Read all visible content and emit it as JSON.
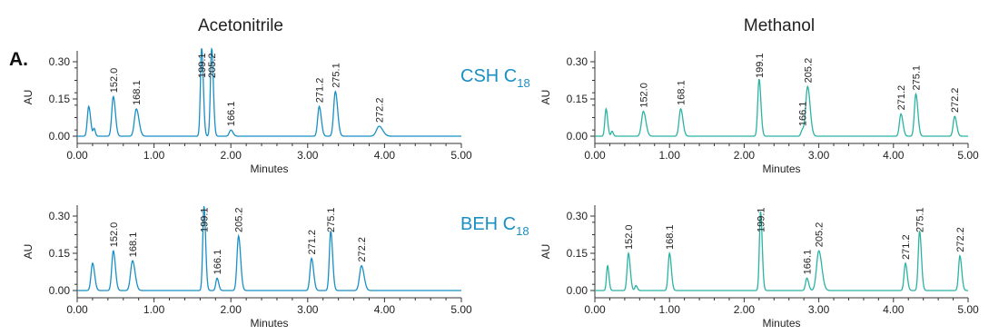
{
  "panel_label": "A.",
  "column_titles": [
    "Acetonitrile",
    "Methanol"
  ],
  "row_labels": [
    {
      "text": "CSH C",
      "sub": "18"
    },
    {
      "text": "BEH C",
      "sub": "18"
    }
  ],
  "colors": {
    "acetonitrile_trace": "#1a8fc4",
    "methanol_trace": "#2bb3a3",
    "axis": "#333333",
    "row_label": "#1a8fc4"
  },
  "chart_data": [
    {
      "type": "line",
      "title": "Acetonitrile",
      "row": "CSH C18",
      "xlabel": "Minutes",
      "ylabel": "AU",
      "xlim": [
        0,
        5
      ],
      "ylim": [
        -0.04,
        0.34
      ],
      "xticks": [
        "0.00",
        "1.00",
        "2.00",
        "3.00",
        "4.00",
        "5.00"
      ],
      "yticks": [
        "0.00",
        "0.15",
        "0.30"
      ],
      "peaks": [
        {
          "t": 0.15,
          "h": 0.12,
          "w": 0.018,
          "label": ""
        },
        {
          "t": 0.22,
          "h": 0.03,
          "w": 0.012,
          "label": ""
        },
        {
          "t": 0.47,
          "h": 0.16,
          "w": 0.02,
          "label": "152.0"
        },
        {
          "t": 0.77,
          "h": 0.11,
          "w": 0.025,
          "label": "168.1"
        },
        {
          "t": 1.62,
          "h": 0.36,
          "w": 0.016,
          "label": "199.1"
        },
        {
          "t": 1.75,
          "h": 0.36,
          "w": 0.016,
          "label": "205.2"
        },
        {
          "t": 2.0,
          "h": 0.025,
          "w": 0.02,
          "label": "166.1"
        },
        {
          "t": 3.15,
          "h": 0.12,
          "w": 0.02,
          "label": "271.2"
        },
        {
          "t": 3.36,
          "h": 0.18,
          "w": 0.022,
          "label": "275.1"
        },
        {
          "t": 3.93,
          "h": 0.04,
          "w": 0.035,
          "label": "272.2"
        }
      ]
    },
    {
      "type": "line",
      "title": "Methanol",
      "row": "CSH C18",
      "xlabel": "Minutes",
      "ylabel": "AU",
      "xlim": [
        0,
        5
      ],
      "ylim": [
        -0.04,
        0.34
      ],
      "xticks": [
        "0.00",
        "1.00",
        "2.00",
        "3.00",
        "4.00",
        "5.00"
      ],
      "yticks": [
        "0.00",
        "0.15",
        "0.30"
      ],
      "peaks": [
        {
          "t": 0.15,
          "h": 0.11,
          "w": 0.016,
          "label": ""
        },
        {
          "t": 0.23,
          "h": 0.02,
          "w": 0.012,
          "label": ""
        },
        {
          "t": 0.65,
          "h": 0.1,
          "w": 0.025,
          "label": "152.0"
        },
        {
          "t": 1.15,
          "h": 0.11,
          "w": 0.022,
          "label": "168.1"
        },
        {
          "t": 2.2,
          "h": 0.23,
          "w": 0.018,
          "label": "199.1"
        },
        {
          "t": 2.78,
          "h": 0.025,
          "w": 0.018,
          "label": "166.1"
        },
        {
          "t": 2.85,
          "h": 0.2,
          "w": 0.025,
          "label": "205.2"
        },
        {
          "t": 4.1,
          "h": 0.09,
          "w": 0.02,
          "label": "271.2"
        },
        {
          "t": 4.3,
          "h": 0.17,
          "w": 0.02,
          "label": "275.1"
        },
        {
          "t": 4.82,
          "h": 0.08,
          "w": 0.02,
          "label": "272.2"
        }
      ]
    },
    {
      "type": "line",
      "title": "Acetonitrile",
      "row": "BEH C18",
      "xlabel": "Minutes",
      "ylabel": "AU",
      "xlim": [
        0,
        5
      ],
      "ylim": [
        -0.04,
        0.34
      ],
      "xticks": [
        "0.00",
        "1.00",
        "2.00",
        "3.00",
        "4.00",
        "5.00"
      ],
      "yticks": [
        "0.00",
        "0.15",
        "0.30"
      ],
      "peaks": [
        {
          "t": 0.2,
          "h": 0.11,
          "w": 0.02,
          "label": ""
        },
        {
          "t": 0.47,
          "h": 0.16,
          "w": 0.02,
          "label": "152.0"
        },
        {
          "t": 0.72,
          "h": 0.12,
          "w": 0.025,
          "label": "168.1"
        },
        {
          "t": 1.65,
          "h": 0.34,
          "w": 0.016,
          "label": "199.1"
        },
        {
          "t": 1.82,
          "h": 0.05,
          "w": 0.016,
          "label": "166.1"
        },
        {
          "t": 2.1,
          "h": 0.22,
          "w": 0.02,
          "label": "205.2"
        },
        {
          "t": 3.05,
          "h": 0.13,
          "w": 0.02,
          "label": "271.2"
        },
        {
          "t": 3.3,
          "h": 0.24,
          "w": 0.018,
          "label": "275.1"
        },
        {
          "t": 3.7,
          "h": 0.1,
          "w": 0.025,
          "label": "272.2"
        }
      ]
    },
    {
      "type": "line",
      "title": "Methanol",
      "row": "BEH C18",
      "xlabel": "Minutes",
      "ylabel": "AU",
      "xlim": [
        0,
        5
      ],
      "ylim": [
        -0.04,
        0.34
      ],
      "xticks": [
        "0.00",
        "1.00",
        "2.00",
        "3.00",
        "4.00",
        "5.00"
      ],
      "yticks": [
        "0.00",
        "0.15",
        "0.30"
      ],
      "peaks": [
        {
          "t": 0.17,
          "h": 0.1,
          "w": 0.014,
          "label": ""
        },
        {
          "t": 0.45,
          "h": 0.15,
          "w": 0.018,
          "label": "152.0"
        },
        {
          "t": 0.55,
          "h": 0.02,
          "w": 0.014,
          "label": ""
        },
        {
          "t": 1.0,
          "h": 0.15,
          "w": 0.018,
          "label": "168.1"
        },
        {
          "t": 2.22,
          "h": 0.32,
          "w": 0.016,
          "label": "199.1"
        },
        {
          "t": 2.84,
          "h": 0.05,
          "w": 0.018,
          "label": "166.1"
        },
        {
          "t": 3.0,
          "h": 0.16,
          "w": 0.03,
          "label": "205.2"
        },
        {
          "t": 4.16,
          "h": 0.11,
          "w": 0.018,
          "label": "271.2"
        },
        {
          "t": 4.35,
          "h": 0.24,
          "w": 0.018,
          "label": "275.1"
        },
        {
          "t": 4.89,
          "h": 0.14,
          "w": 0.018,
          "label": "272.2"
        }
      ]
    }
  ]
}
